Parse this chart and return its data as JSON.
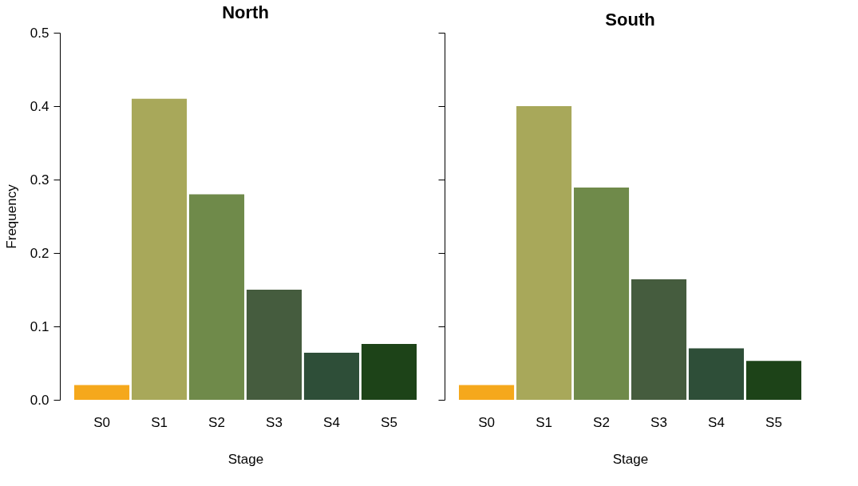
{
  "chart_data": [
    {
      "type": "bar",
      "title": "North",
      "categories": [
        "S0",
        "S1",
        "S2",
        "S3",
        "S4",
        "S5"
      ],
      "values": [
        0.02,
        0.41,
        0.28,
        0.15,
        0.064,
        0.076
      ],
      "colors": [
        "#f5a81c",
        "#a8a85a",
        "#6f8a4a",
        "#455c3e",
        "#2e4e38",
        "#1d4318"
      ],
      "xlabel": "Stage",
      "ylabel": "Frequency",
      "ylim": [
        0,
        0.5
      ],
      "yticks": [
        {
          "value": 0,
          "label": "0.0"
        },
        0.1,
        0.2,
        0.3,
        0.4,
        0.5
      ],
      "grid": false
    },
    {
      "type": "bar",
      "title": "South",
      "categories": [
        "S0",
        "S1",
        "S2",
        "S3",
        "S4",
        "S5"
      ],
      "values": [
        0.02,
        0.4,
        0.289,
        0.164,
        0.07,
        0.053
      ],
      "colors": [
        "#f5a81c",
        "#a8a85a",
        "#6f8a4a",
        "#455c3e",
        "#2e4e38",
        "#1d4318"
      ],
      "xlabel": "Stage",
      "ylim": [
        0,
        0.5
      ],
      "yticks": [
        0,
        0.1,
        0.2,
        0.3,
        0.4,
        0.5
      ],
      "tick_labels": "x",
      "grid": false
    }
  ]
}
